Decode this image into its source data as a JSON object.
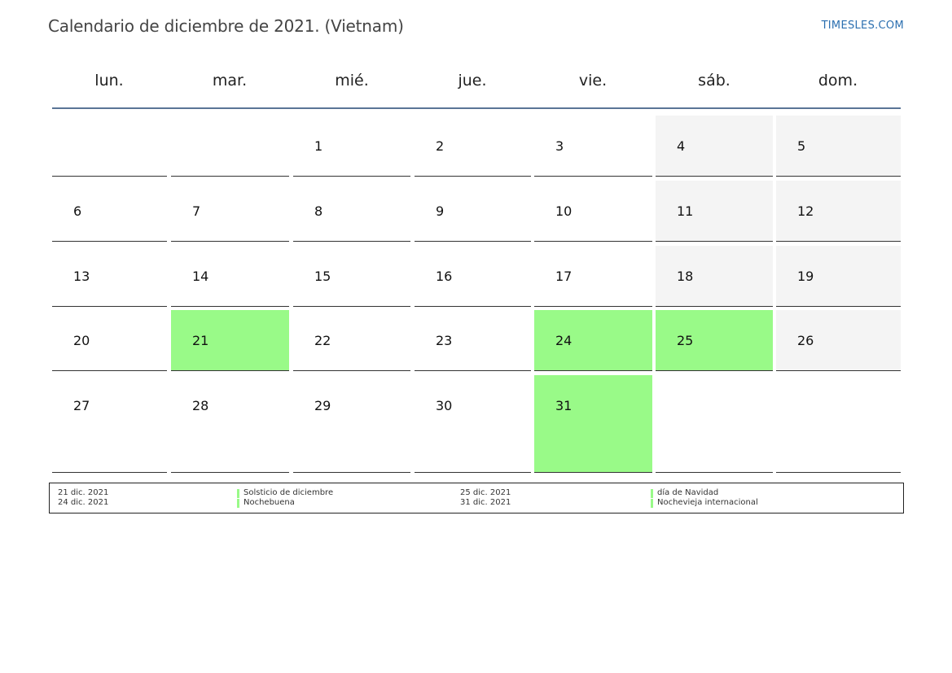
{
  "header": {
    "title": "Calendario de diciembre de 2021. (Vietnam)",
    "site": "TIMESLES.COM"
  },
  "weekdays": [
    "lun.",
    "mar.",
    "mié.",
    "jue.",
    "vie.",
    "sáb.",
    "dom."
  ],
  "weeks": [
    [
      {
        "day": "",
        "type": "empty"
      },
      {
        "day": "",
        "type": "empty"
      },
      {
        "day": "1",
        "type": "normal"
      },
      {
        "day": "2",
        "type": "normal"
      },
      {
        "day": "3",
        "type": "normal"
      },
      {
        "day": "4",
        "type": "weekend"
      },
      {
        "day": "5",
        "type": "weekend"
      }
    ],
    [
      {
        "day": "6",
        "type": "normal"
      },
      {
        "day": "7",
        "type": "normal"
      },
      {
        "day": "8",
        "type": "normal"
      },
      {
        "day": "9",
        "type": "normal"
      },
      {
        "day": "10",
        "type": "normal"
      },
      {
        "day": "11",
        "type": "weekend"
      },
      {
        "day": "12",
        "type": "weekend"
      }
    ],
    [
      {
        "day": "13",
        "type": "normal"
      },
      {
        "day": "14",
        "type": "normal"
      },
      {
        "day": "15",
        "type": "normal"
      },
      {
        "day": "16",
        "type": "normal"
      },
      {
        "day": "17",
        "type": "normal"
      },
      {
        "day": "18",
        "type": "weekend"
      },
      {
        "day": "19",
        "type": "weekend"
      }
    ],
    [
      {
        "day": "20",
        "type": "normal"
      },
      {
        "day": "21",
        "type": "holiday"
      },
      {
        "day": "22",
        "type": "normal"
      },
      {
        "day": "23",
        "type": "normal"
      },
      {
        "day": "24",
        "type": "holiday"
      },
      {
        "day": "25",
        "type": "holiday"
      },
      {
        "day": "26",
        "type": "weekend"
      }
    ],
    [
      {
        "day": "27",
        "type": "normal"
      },
      {
        "day": "28",
        "type": "normal"
      },
      {
        "day": "29",
        "type": "normal"
      },
      {
        "day": "30",
        "type": "normal"
      },
      {
        "day": "31",
        "type": "holiday"
      },
      {
        "day": "",
        "type": "empty"
      },
      {
        "day": "",
        "type": "empty"
      }
    ]
  ],
  "legend": [
    {
      "date": "21 dic. 2021",
      "name": "Solsticio de diciembre"
    },
    {
      "date": "24 dic. 2021",
      "name": "Nochebuena"
    },
    {
      "date": "25 dic. 2021",
      "name": "día de Navidad"
    },
    {
      "date": "31 dic. 2021",
      "name": "Nochevieja internacional"
    }
  ],
  "colors": {
    "holiday": "#99fa88",
    "weekend": "#f4f4f4",
    "header_rule": "#5a7596",
    "link": "#2b6fb0"
  }
}
